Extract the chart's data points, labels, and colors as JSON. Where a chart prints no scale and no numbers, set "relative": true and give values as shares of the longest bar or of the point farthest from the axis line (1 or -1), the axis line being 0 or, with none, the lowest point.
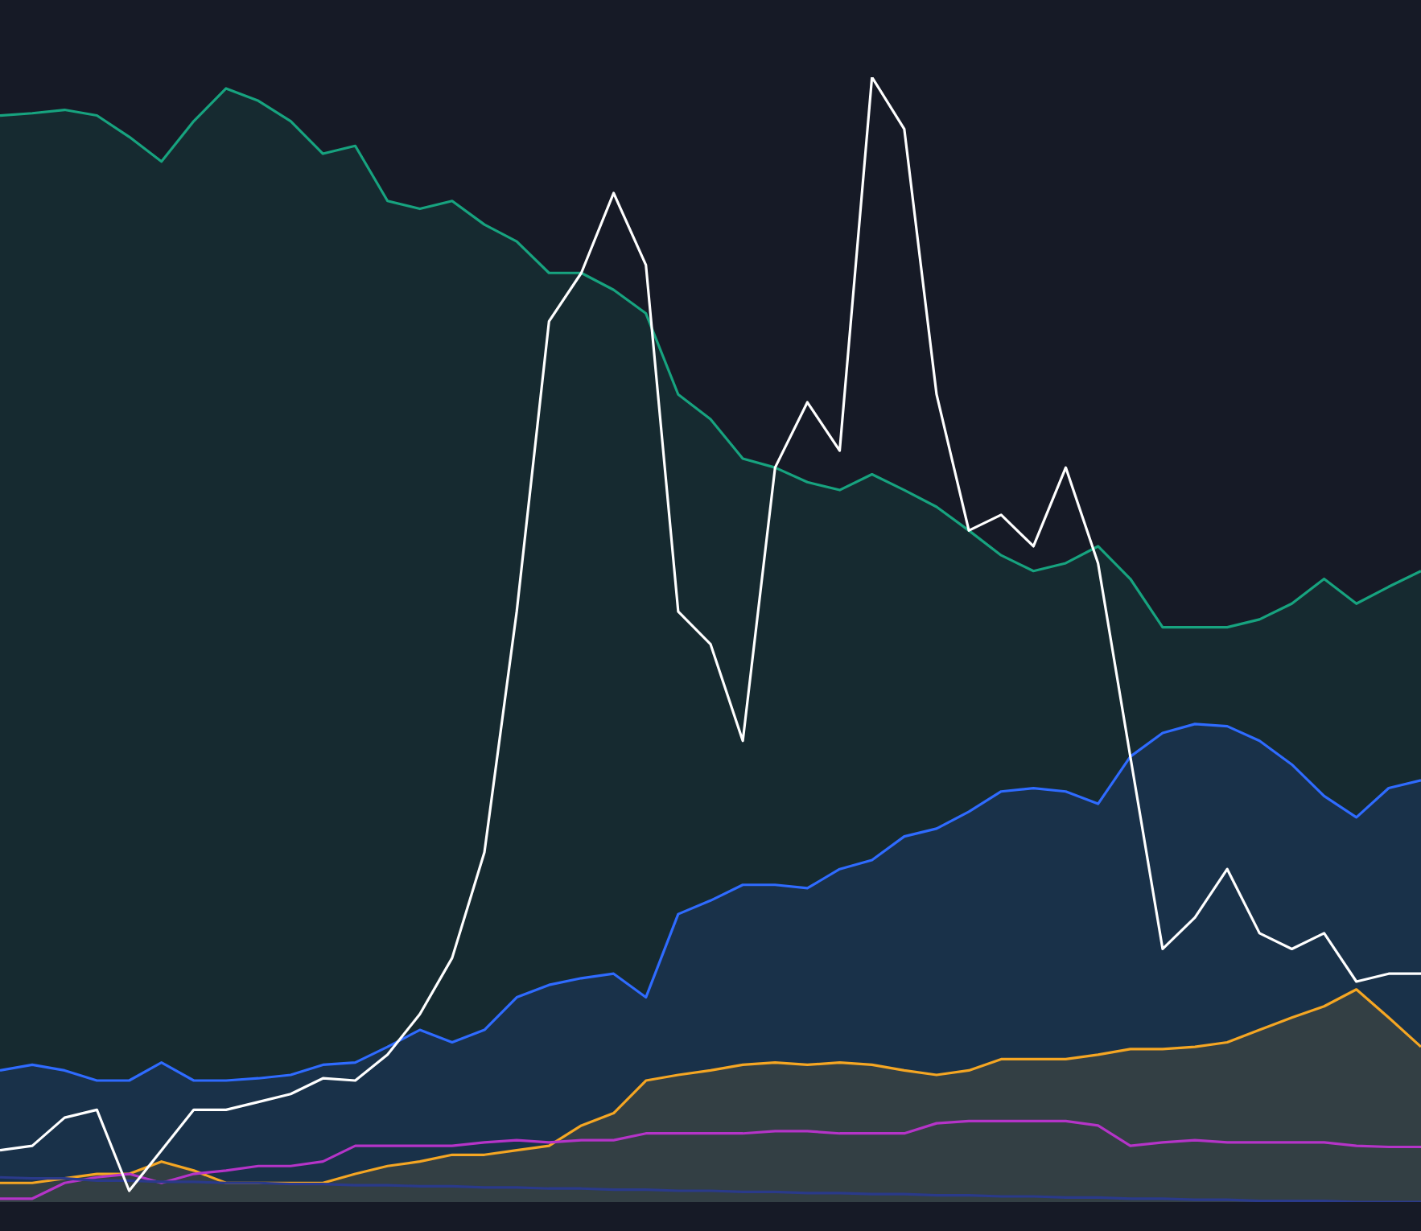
{
  "chart_data": {
    "type": "line",
    "relative": true,
    "marker": "none",
    "legend": false,
    "categories": [
      null,
      null,
      null,
      null,
      null,
      null,
      null,
      null,
      null,
      null,
      null,
      null,
      null,
      null,
      null,
      null,
      null,
      null,
      null,
      null,
      null,
      null,
      null,
      null,
      null,
      null,
      null,
      null,
      null,
      null,
      null,
      null,
      null,
      null,
      null,
      null,
      null,
      null,
      null,
      null,
      null,
      null,
      null,
      null,
      null
    ],
    "series": [
      {
        "type": "area",
        "color": "#17a37f",
        "values": [
          0.966,
          0.968,
          0.971,
          0.966,
          0.947,
          0.925,
          0.961,
          0.99,
          0.979,
          0.961,
          0.932,
          0.939,
          0.89,
          0.883,
          0.89,
          0.869,
          0.854,
          0.826,
          0.826,
          0.811,
          0.79,
          0.718,
          0.696,
          0.661,
          0.653,
          0.64,
          0.633,
          0.647,
          0.633,
          0.618,
          0.597,
          0.575,
          0.561,
          0.568,
          0.583,
          0.554,
          0.511,
          0.511,
          0.511,
          0.518,
          0.532,
          0.554,
          0.532,
          0.547,
          0.561
        ]
      },
      {
        "type": "area",
        "color": "#2f6bff",
        "values": [
          0.117,
          0.122,
          0.117,
          0.108,
          0.108,
          0.124,
          0.108,
          0.108,
          0.11,
          0.113,
          0.122,
          0.124,
          0.138,
          0.153,
          0.142,
          0.153,
          0.182,
          0.193,
          0.199,
          0.203,
          0.182,
          0.256,
          0.268,
          0.282,
          0.282,
          0.279,
          0.296,
          0.304,
          0.325,
          0.332,
          0.347,
          0.365,
          0.368,
          0.365,
          0.354,
          0.396,
          0.417,
          0.425,
          0.423,
          0.41,
          0.389,
          0.361,
          0.342,
          0.368,
          0.375
        ]
      },
      {
        "type": "area",
        "color": "#f5a623",
        "values": [
          0.017,
          0.017,
          0.021,
          0.025,
          0.025,
          0.036,
          0.028,
          0.017,
          0.017,
          0.017,
          0.017,
          0.025,
          0.032,
          0.036,
          0.042,
          0.042,
          0.046,
          0.05,
          0.068,
          0.079,
          0.108,
          0.113,
          0.117,
          0.122,
          0.124,
          0.122,
          0.124,
          0.122,
          0.117,
          0.113,
          0.117,
          0.127,
          0.127,
          0.127,
          0.131,
          0.136,
          0.136,
          0.138,
          0.142,
          0.153,
          0.164,
          0.174,
          0.189,
          0.164,
          0.138
        ]
      },
      {
        "type": "line",
        "color": "#b534c8",
        "values": [
          0.003,
          0.003,
          0.017,
          0.022,
          0.025,
          0.017,
          0.025,
          0.028,
          0.032,
          0.032,
          0.036,
          0.05,
          0.05,
          0.05,
          0.05,
          0.053,
          0.055,
          0.053,
          0.055,
          0.055,
          0.061,
          0.061,
          0.061,
          0.061,
          0.063,
          0.063,
          0.061,
          0.061,
          0.061,
          0.07,
          0.072,
          0.072,
          0.072,
          0.072,
          0.068,
          0.05,
          0.053,
          0.055,
          0.053,
          0.053,
          0.053,
          0.053,
          0.05,
          0.049,
          0.049
        ]
      },
      {
        "type": "line",
        "color": "#2a3a8a",
        "values": [
          0.022,
          0.021,
          0.021,
          0.019,
          0.019,
          0.018,
          0.018,
          0.017,
          0.017,
          0.016,
          0.016,
          0.015,
          0.015,
          0.014,
          0.014,
          0.013,
          0.013,
          0.012,
          0.012,
          0.011,
          0.011,
          0.01,
          0.01,
          0.009,
          0.009,
          0.008,
          0.008,
          0.007,
          0.007,
          0.006,
          0.006,
          0.005,
          0.005,
          0.004,
          0.004,
          0.003,
          0.003,
          0.002,
          0.002,
          0.001,
          0.001,
          0.001,
          0,
          0,
          0
        ]
      },
      {
        "type": "line",
        "color": "#ffffff",
        "values": [
          0.046,
          0.05,
          0.075,
          0.082,
          0.01,
          0.046,
          0.082,
          0.082,
          0.089,
          0.096,
          0.11,
          0.108,
          0.131,
          0.167,
          0.217,
          0.311,
          0.525,
          0.783,
          0.826,
          0.897,
          0.833,
          0.525,
          0.496,
          0.41,
          0.653,
          0.711,
          0.668,
          1,
          0.954,
          0.718,
          0.597,
          0.611,
          0.583,
          0.653,
          0.568,
          0.396,
          0.225,
          0.253,
          0.296,
          0.239,
          0.225,
          0.239,
          0.196,
          0.203,
          0.203
        ]
      }
    ]
  }
}
